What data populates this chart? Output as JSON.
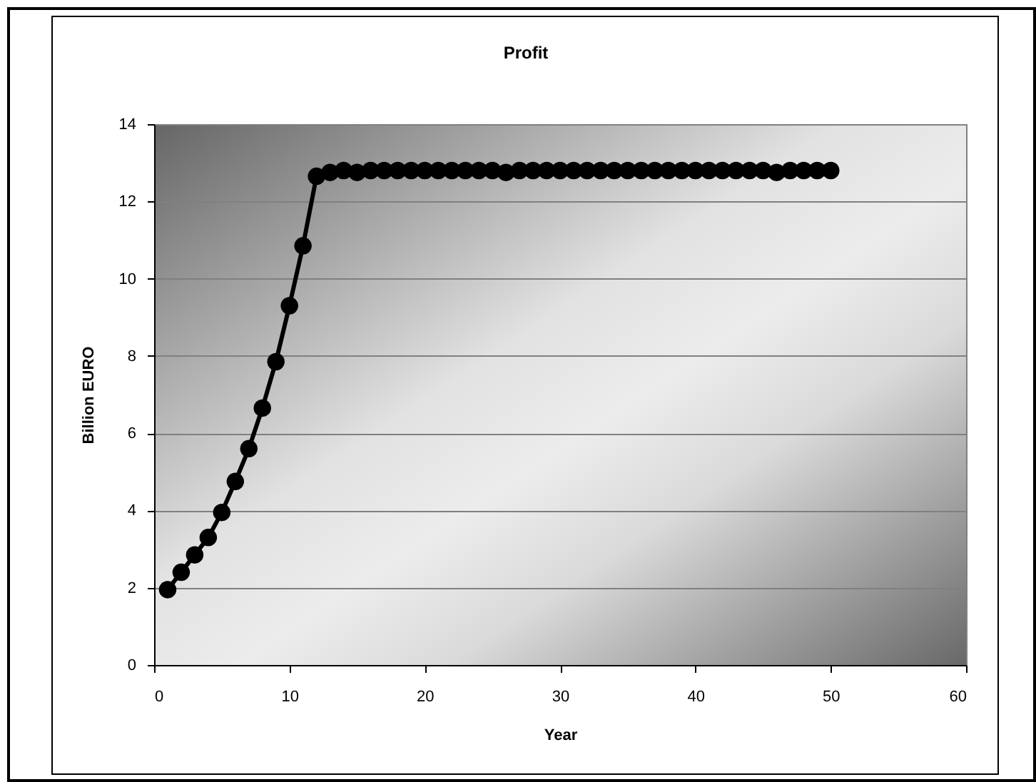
{
  "chart_data": {
    "type": "line",
    "title": "Profit",
    "xlabel": "Year",
    "ylabel": "Billion EURO",
    "x": [
      1,
      2,
      3,
      4,
      5,
      6,
      7,
      8,
      9,
      10,
      11,
      12,
      13,
      14,
      15,
      16,
      17,
      18,
      19,
      20,
      21,
      22,
      23,
      24,
      25,
      26,
      27,
      28,
      29,
      30,
      31,
      32,
      33,
      34,
      35,
      36,
      37,
      38,
      39,
      40,
      41,
      42,
      43,
      44,
      45,
      46,
      47,
      48,
      49,
      50
    ],
    "series": [
      {
        "color": "#000000",
        "values": [
          1.95,
          2.4,
          2.85,
          3.3,
          3.95,
          4.75,
          5.6,
          6.65,
          7.85,
          9.3,
          10.85,
          12.65,
          12.75,
          12.8,
          12.75,
          12.8,
          12.8,
          12.8,
          12.8,
          12.8,
          12.8,
          12.8,
          12.8,
          12.8,
          12.8,
          12.75,
          12.8,
          12.8,
          12.8,
          12.8,
          12.8,
          12.8,
          12.8,
          12.8,
          12.8,
          12.8,
          12.8,
          12.8,
          12.8,
          12.8,
          12.8,
          12.8,
          12.8,
          12.8,
          12.8,
          12.75,
          12.8,
          12.8,
          12.8,
          12.8
        ]
      }
    ],
    "xlim": [
      0,
      60
    ],
    "xticks": [
      0,
      10,
      20,
      30,
      40,
      50,
      60
    ],
    "ylim": [
      0,
      14
    ],
    "yticks": [
      0,
      2,
      4,
      6,
      8,
      10,
      12,
      14
    ],
    "grid": "y",
    "marker": "circle",
    "line_style": "solid"
  }
}
